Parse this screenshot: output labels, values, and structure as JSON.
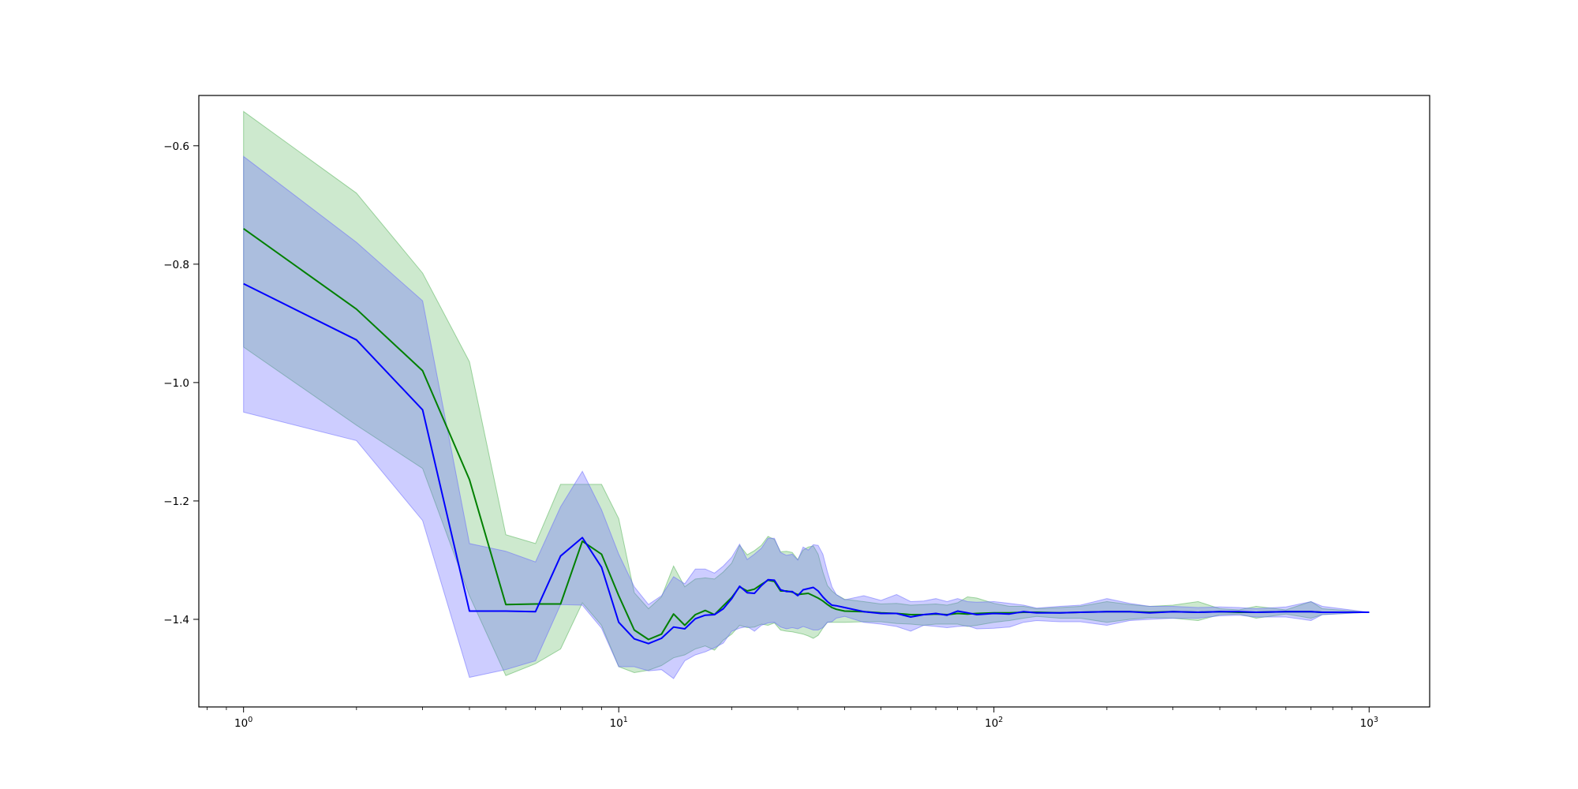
{
  "chart_data": {
    "type": "line",
    "title": "",
    "xlabel": "",
    "ylabel": "",
    "x_scale": "log",
    "xlim": [
      0.76,
      1450
    ],
    "ylim": [
      -1.548,
      -0.515
    ],
    "x_ticks": [
      {
        "value": 1,
        "base": "10",
        "exp": "0"
      },
      {
        "value": 10,
        "base": "10",
        "exp": "1"
      },
      {
        "value": 100,
        "base": "10",
        "exp": "2"
      },
      {
        "value": 1000,
        "base": "10",
        "exp": "3"
      }
    ],
    "y_ticks": [
      {
        "value": -0.6,
        "label": "−0.6"
      },
      {
        "value": -0.8,
        "label": "−0.8"
      },
      {
        "value": -1.0,
        "label": "−1.0"
      },
      {
        "value": -1.2,
        "label": "−1.2"
      },
      {
        "value": -1.4,
        "label": "−1.4"
      }
    ],
    "grid": false,
    "legend": "none",
    "series": [
      {
        "color": "#008000",
        "band_color": "#4caf50",
        "x": [
          1,
          2,
          3,
          4,
          5,
          6,
          7,
          8,
          9,
          10,
          11,
          12,
          13,
          14,
          15,
          16,
          17,
          18,
          19,
          20,
          21,
          22,
          23,
          24,
          25,
          26,
          27,
          28,
          29,
          30,
          31,
          32,
          33,
          34,
          35,
          36,
          37,
          38,
          40,
          45,
          50,
          55,
          60,
          65,
          70,
          75,
          80,
          85,
          90,
          100,
          110,
          120,
          130,
          150,
          170,
          200,
          230,
          260,
          300,
          350,
          400,
          450,
          500,
          600,
          700,
          750,
          1000
        ],
        "mean": [
          -0.74,
          -0.876,
          -0.98,
          -1.164,
          -1.375,
          -1.374,
          -1.374,
          -1.268,
          -1.29,
          -1.36,
          -1.418,
          -1.434,
          -1.425,
          -1.391,
          -1.41,
          -1.392,
          -1.385,
          -1.392,
          -1.377,
          -1.363,
          -1.345,
          -1.352,
          -1.349,
          -1.341,
          -1.334,
          -1.336,
          -1.352,
          -1.352,
          -1.354,
          -1.358,
          -1.357,
          -1.356,
          -1.36,
          -1.364,
          -1.369,
          -1.375,
          -1.38,
          -1.383,
          -1.386,
          -1.387,
          -1.389,
          -1.39,
          -1.392,
          -1.392,
          -1.391,
          -1.392,
          -1.39,
          -1.391,
          -1.39,
          -1.389,
          -1.389,
          -1.388,
          -1.388,
          -1.389,
          -1.388,
          -1.387,
          -1.387,
          -1.388,
          -1.387,
          -1.388,
          -1.387,
          -1.388,
          -1.388,
          -1.387,
          -1.387,
          -1.388,
          -1.388
        ],
        "upper": [
          -0.542,
          -0.68,
          -0.815,
          -0.965,
          -1.257,
          -1.272,
          -1.172,
          -1.172,
          -1.172,
          -1.23,
          -1.355,
          -1.382,
          -1.362,
          -1.31,
          -1.345,
          -1.332,
          -1.33,
          -1.332,
          -1.32,
          -1.305,
          -1.275,
          -1.291,
          -1.284,
          -1.275,
          -1.26,
          -1.265,
          -1.286,
          -1.285,
          -1.287,
          -1.299,
          -1.283,
          -1.278,
          -1.276,
          -1.29,
          -1.32,
          -1.343,
          -1.352,
          -1.358,
          -1.366,
          -1.37,
          -1.374,
          -1.373,
          -1.376,
          -1.375,
          -1.374,
          -1.376,
          -1.372,
          -1.362,
          -1.364,
          -1.373,
          -1.378,
          -1.378,
          -1.382,
          -1.38,
          -1.378,
          -1.37,
          -1.375,
          -1.378,
          -1.376,
          -1.37,
          -1.382,
          -1.384,
          -1.378,
          -1.384,
          -1.37,
          -1.382,
          -1.388
        ],
        "lower": [
          -0.94,
          -1.072,
          -1.145,
          -1.36,
          -1.495,
          -1.475,
          -1.45,
          -1.372,
          -1.41,
          -1.48,
          -1.49,
          -1.486,
          -1.478,
          -1.465,
          -1.46,
          -1.45,
          -1.445,
          -1.452,
          -1.435,
          -1.425,
          -1.41,
          -1.414,
          -1.413,
          -1.408,
          -1.41,
          -1.406,
          -1.418,
          -1.42,
          -1.421,
          -1.423,
          -1.425,
          -1.428,
          -1.432,
          -1.427,
          -1.415,
          -1.405,
          -1.405,
          -1.405,
          -1.405,
          -1.404,
          -1.404,
          -1.407,
          -1.408,
          -1.41,
          -1.408,
          -1.408,
          -1.408,
          -1.412,
          -1.41,
          -1.405,
          -1.402,
          -1.398,
          -1.395,
          -1.398,
          -1.398,
          -1.405,
          -1.4,
          -1.397,
          -1.398,
          -1.402,
          -1.392,
          -1.391,
          -1.398,
          -1.391,
          -1.398,
          -1.392,
          -1.388
        ]
      },
      {
        "color": "#0000ff",
        "band_color": "#6464ff",
        "x": [
          1,
          2,
          3,
          4,
          5,
          6,
          7,
          8,
          9,
          10,
          11,
          12,
          13,
          14,
          15,
          16,
          17,
          18,
          19,
          20,
          21,
          22,
          23,
          24,
          25,
          26,
          27,
          28,
          29,
          30,
          31,
          32,
          33,
          34,
          35,
          36,
          37,
          38,
          40,
          45,
          50,
          55,
          60,
          65,
          70,
          75,
          80,
          85,
          90,
          100,
          110,
          120,
          130,
          150,
          170,
          200,
          230,
          260,
          300,
          350,
          400,
          450,
          500,
          600,
          700,
          750,
          1000
        ],
        "mean": [
          -0.833,
          -0.928,
          -1.046,
          -1.386,
          -1.386,
          -1.387,
          -1.293,
          -1.262,
          -1.312,
          -1.405,
          -1.433,
          -1.441,
          -1.432,
          -1.413,
          -1.416,
          -1.399,
          -1.393,
          -1.392,
          -1.382,
          -1.365,
          -1.344,
          -1.355,
          -1.356,
          -1.343,
          -1.333,
          -1.334,
          -1.35,
          -1.353,
          -1.353,
          -1.36,
          -1.35,
          -1.348,
          -1.346,
          -1.352,
          -1.362,
          -1.37,
          -1.376,
          -1.377,
          -1.38,
          -1.387,
          -1.39,
          -1.39,
          -1.396,
          -1.392,
          -1.39,
          -1.393,
          -1.386,
          -1.389,
          -1.392,
          -1.39,
          -1.391,
          -1.387,
          -1.389,
          -1.389,
          -1.388,
          -1.387,
          -1.387,
          -1.389,
          -1.387,
          -1.388,
          -1.387,
          -1.387,
          -1.388,
          -1.387,
          -1.387,
          -1.388,
          -1.388
        ],
        "upper": [
          -0.618,
          -0.763,
          -0.862,
          -1.272,
          -1.285,
          -1.303,
          -1.21,
          -1.15,
          -1.215,
          -1.29,
          -1.345,
          -1.375,
          -1.36,
          -1.328,
          -1.34,
          -1.315,
          -1.315,
          -1.322,
          -1.31,
          -1.295,
          -1.273,
          -1.299,
          -1.29,
          -1.28,
          -1.263,
          -1.263,
          -1.287,
          -1.292,
          -1.29,
          -1.3,
          -1.278,
          -1.283,
          -1.274,
          -1.275,
          -1.29,
          -1.32,
          -1.345,
          -1.358,
          -1.367,
          -1.36,
          -1.368,
          -1.358,
          -1.37,
          -1.369,
          -1.365,
          -1.37,
          -1.365,
          -1.37,
          -1.371,
          -1.37,
          -1.373,
          -1.376,
          -1.381,
          -1.378,
          -1.376,
          -1.365,
          -1.373,
          -1.378,
          -1.378,
          -1.38,
          -1.379,
          -1.38,
          -1.382,
          -1.379,
          -1.37,
          -1.378,
          -1.388
        ],
        "lower": [
          -1.05,
          -1.098,
          -1.233,
          -1.498,
          -1.485,
          -1.47,
          -1.375,
          -1.376,
          -1.415,
          -1.48,
          -1.48,
          -1.487,
          -1.485,
          -1.5,
          -1.47,
          -1.46,
          -1.455,
          -1.448,
          -1.44,
          -1.42,
          -1.415,
          -1.412,
          -1.42,
          -1.41,
          -1.406,
          -1.405,
          -1.413,
          -1.416,
          -1.414,
          -1.416,
          -1.412,
          -1.415,
          -1.418,
          -1.418,
          -1.414,
          -1.405,
          -1.404,
          -1.398,
          -1.395,
          -1.405,
          -1.408,
          -1.412,
          -1.42,
          -1.41,
          -1.412,
          -1.414,
          -1.412,
          -1.411,
          -1.416,
          -1.415,
          -1.413,
          -1.405,
          -1.402,
          -1.404,
          -1.404,
          -1.41,
          -1.402,
          -1.4,
          -1.398,
          -1.398,
          -1.394,
          -1.393,
          -1.396,
          -1.396,
          -1.402,
          -1.392,
          -1.388
        ]
      }
    ]
  }
}
